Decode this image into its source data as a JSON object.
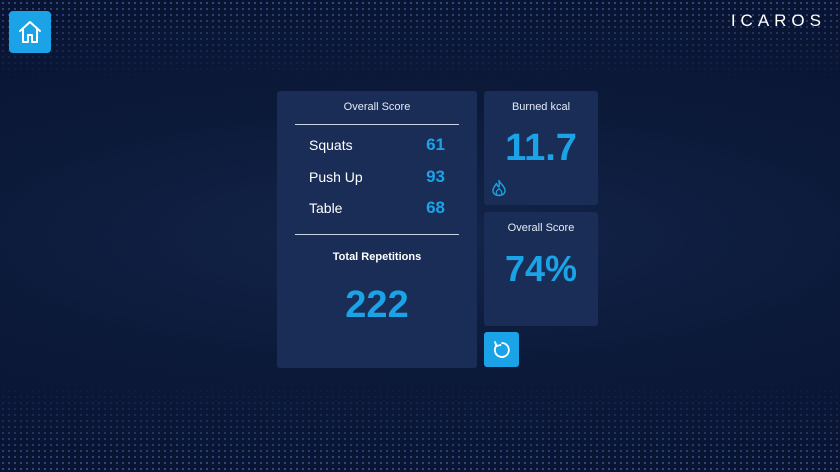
{
  "header": {
    "home_icon": "home-icon",
    "logo_text": "ICAROS"
  },
  "summary": {
    "title": "Overall Score",
    "exercises": [
      {
        "label": "Squats",
        "value": "61"
      },
      {
        "label": "Push Up",
        "value": "93"
      },
      {
        "label": "Table",
        "value": "68"
      }
    ],
    "total_label": "Total Repetitions",
    "total_value": "222"
  },
  "kcal": {
    "title": "Burned kcal",
    "value": "11.7",
    "icon": "flame-icon"
  },
  "overall": {
    "title": "Overall Score",
    "value": "74%"
  },
  "controls": {
    "reset_icon": "restart-icon"
  },
  "colors": {
    "accent": "#1ba3e8",
    "panel": "#1a2d56",
    "background": "#0c1a3a"
  }
}
